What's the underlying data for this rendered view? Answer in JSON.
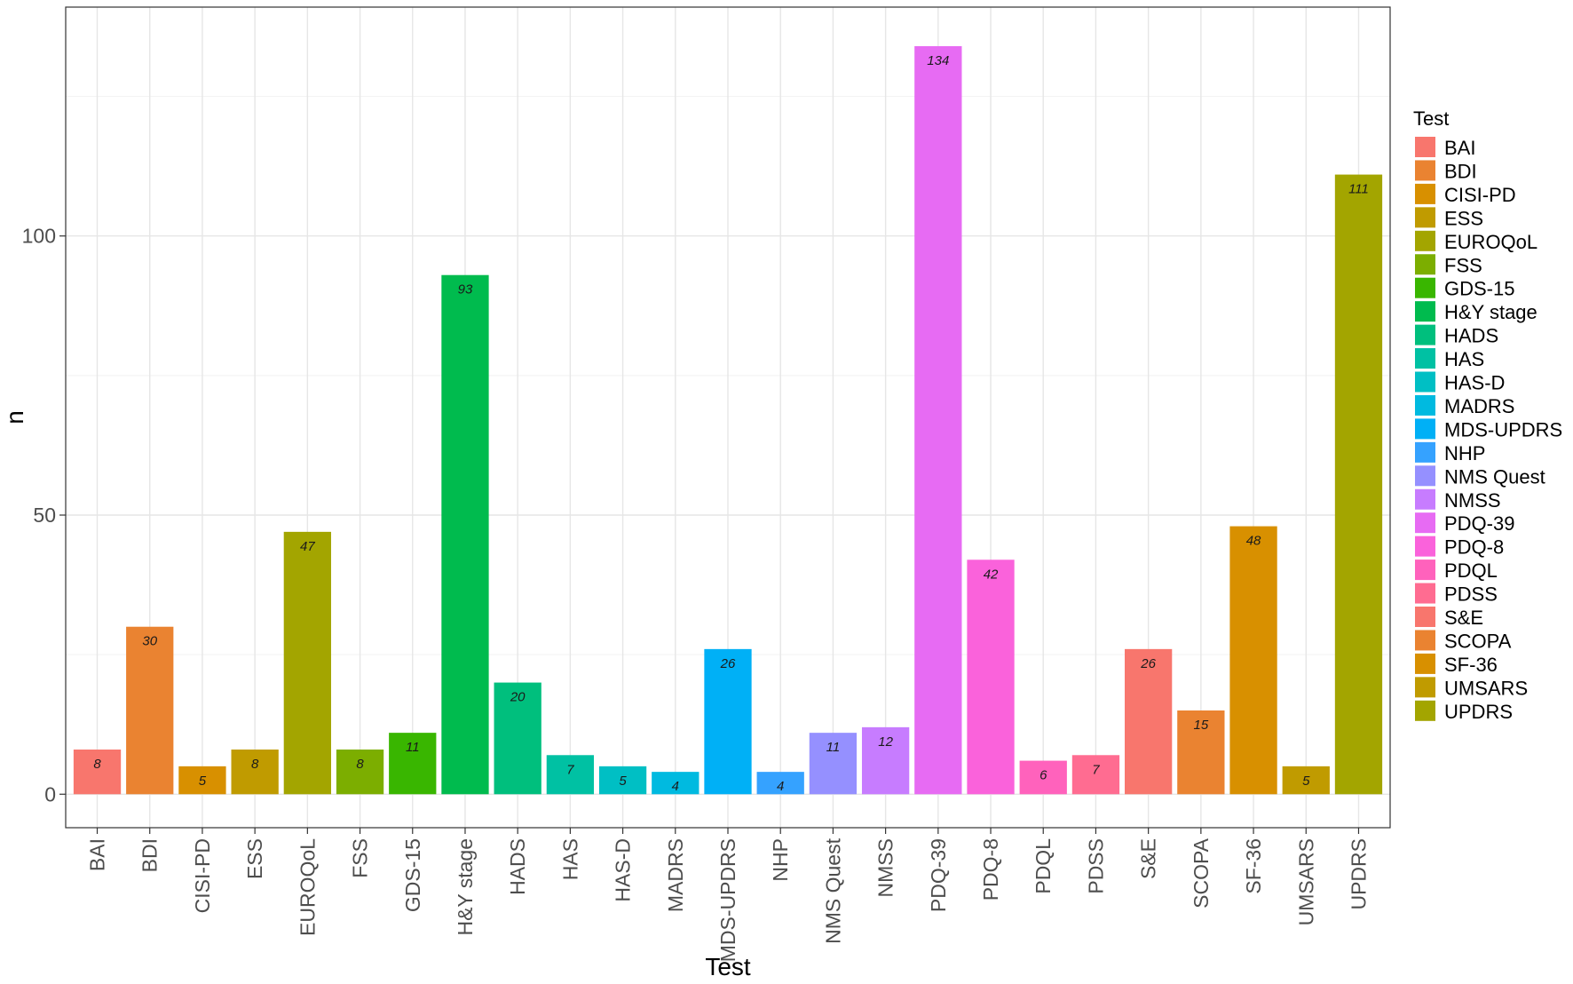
{
  "chart_data": {
    "type": "bar",
    "xlabel": "Test",
    "ylabel": "n",
    "ylim": [
      -6,
      141
    ],
    "y_ticks": [
      0,
      50,
      100
    ],
    "grid": true,
    "legend_title": "Test",
    "legend_position": "right",
    "categories": [
      "BAI",
      "BDI",
      "CISI-PD",
      "ESS",
      "EUROQoL",
      "FSS",
      "GDS-15",
      "H&Y stage",
      "HADS",
      "HAS",
      "HAS-D",
      "MADRS",
      "MDS-UPDRS",
      "NHP",
      "NMS Quest",
      "NMSS",
      "PDQ-39",
      "PDQ-8",
      "PDQL",
      "PDSS",
      "S&E",
      "SCOPA",
      "SF-36",
      "UMSARS",
      "UPDRS"
    ],
    "values": [
      8,
      30,
      5,
      8,
      47,
      8,
      11,
      93,
      20,
      7,
      5,
      4,
      26,
      4,
      11,
      12,
      134,
      42,
      6,
      7,
      26,
      15,
      48,
      5,
      111
    ],
    "data_labels": [
      "8",
      "30",
      "5",
      "8",
      "47",
      "8",
      "11",
      "93",
      "20",
      "7",
      "5",
      "4",
      "26",
      "4",
      "11",
      "12",
      "134",
      "42",
      "6",
      "7",
      "26",
      "15",
      "48",
      "5",
      "111"
    ],
    "colors": [
      "#F8766D",
      "#EA8331",
      "#D89000",
      "#C09B00",
      "#A3A500",
      "#7CAE00",
      "#39B600",
      "#00BB4E",
      "#00BF7D",
      "#00C1A3",
      "#00BFC4",
      "#00BAE0",
      "#00B0F6",
      "#35A2FF",
      "#9590FF",
      "#C77CFF",
      "#E76BF3",
      "#FA62DB",
      "#FF62BC",
      "#FF6C91",
      "#F8766D",
      "#EA8331",
      "#D89000",
      "#C09B00",
      "#A3A500"
    ]
  }
}
